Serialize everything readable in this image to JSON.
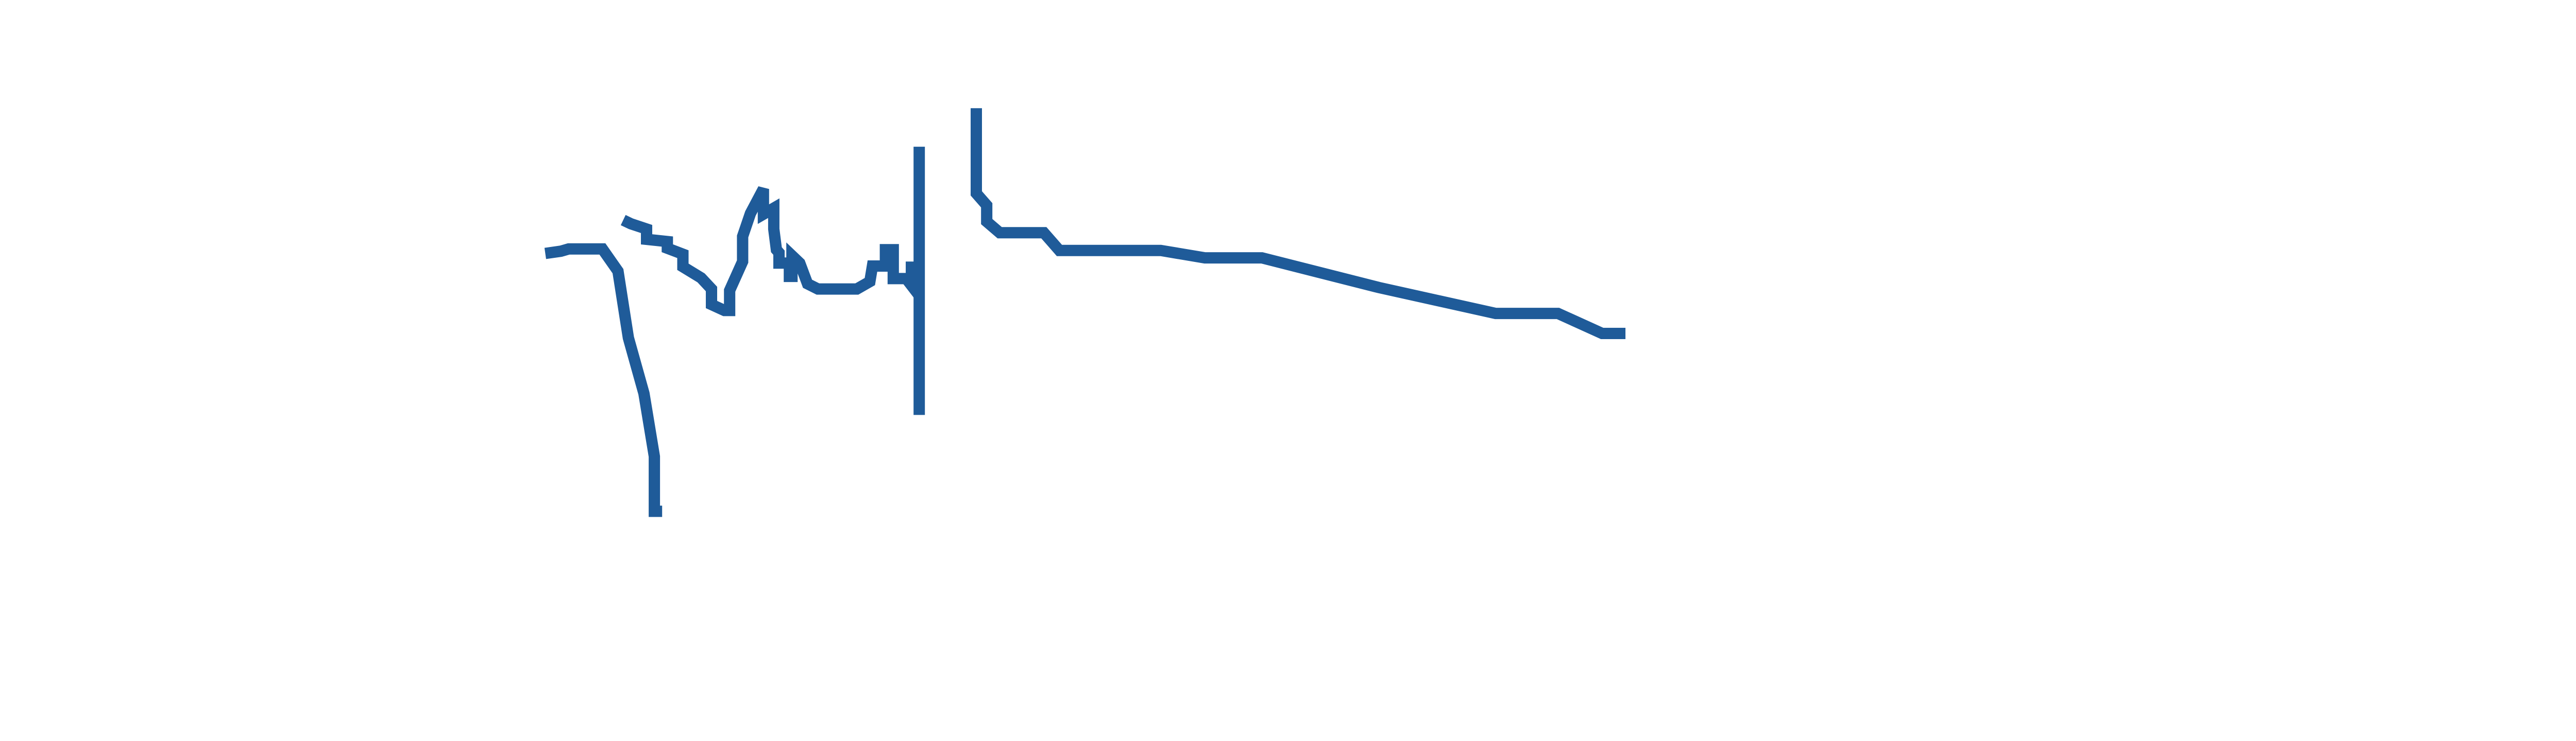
{
  "chart_data": {
    "type": "line",
    "title": "",
    "xlabel": "",
    "ylabel": "",
    "grid": false,
    "axes_visible": false,
    "legend": "none",
    "xlim": [
      0,
      100
    ],
    "ylim": [
      0,
      100
    ],
    "series": [
      {
        "color": "#1f5b99",
        "segments": [
          [
            [
              21.0,
              65.8
            ],
            [
              21.6,
              66.1
            ],
            [
              21.9,
              66.4
            ],
            [
              23.2,
              66.4
            ],
            [
              23.8,
              63.4
            ],
            [
              24.2,
              54.4
            ],
            [
              24.8,
              46.9
            ],
            [
              25.2,
              38.4
            ],
            [
              25.2,
              31.0
            ],
            [
              25.5,
              31.0
            ]
          ],
          [
            [
              24.0,
              70.3
            ],
            [
              24.3,
              69.8
            ],
            [
              24.9,
              69.1
            ],
            [
              24.9,
              67.7
            ],
            [
              25.7,
              67.4
            ],
            [
              25.7,
              66.5
            ],
            [
              26.3,
              65.7
            ],
            [
              26.3,
              64.0
            ],
            [
              27.0,
              62.5
            ],
            [
              27.4,
              61.0
            ],
            [
              27.4,
              58.9
            ],
            [
              27.9,
              58.1
            ],
            [
              28.1,
              58.1
            ],
            [
              28.1,
              60.8
            ],
            [
              28.6,
              64.7
            ],
            [
              28.6,
              68.1
            ],
            [
              28.9,
              71.2
            ],
            [
              29.4,
              74.5
            ],
            [
              29.4,
              71.1
            ],
            [
              29.8,
              71.9
            ],
            [
              29.8,
              69.1
            ],
            [
              29.9,
              66.3
            ],
            [
              30.0,
              65.9
            ],
            [
              30.0,
              64.5
            ],
            [
              30.4,
              64.5
            ],
            [
              30.4,
              62.7
            ],
            [
              30.5,
              62.7
            ],
            [
              30.5,
              65.5
            ],
            [
              30.8,
              64.5
            ],
            [
              31.1,
              61.7
            ],
            [
              31.5,
              61.0
            ],
            [
              33.0,
              61.0
            ],
            [
              33.5,
              62.0
            ],
            [
              33.6,
              64.1
            ],
            [
              34.1,
              64.1
            ],
            [
              34.1,
              66.3
            ],
            [
              34.4,
              66.3
            ],
            [
              34.4,
              62.4
            ],
            [
              34.9,
              62.4
            ],
            [
              35.1,
              61.5
            ],
            [
              35.1,
              64.7
            ]
          ],
          [
            [
              35.4,
              80.2
            ],
            [
              35.4,
              44.0
            ]
          ],
          [
            [
              37.6,
              85.4
            ],
            [
              37.6,
              73.9
            ],
            [
              38.0,
              72.3
            ],
            [
              38.0,
              70.1
            ],
            [
              38.5,
              68.6
            ],
            [
              40.2,
              68.6
            ],
            [
              40.8,
              66.2
            ],
            [
              44.7,
              66.2
            ],
            [
              46.4,
              65.2
            ],
            [
              48.6,
              65.2
            ],
            [
              53.1,
              61.2
            ],
            [
              57.6,
              57.7
            ],
            [
              60.0,
              57.7
            ],
            [
              61.7,
              55.0
            ],
            [
              62.6,
              55.0
            ]
          ]
        ]
      }
    ]
  }
}
